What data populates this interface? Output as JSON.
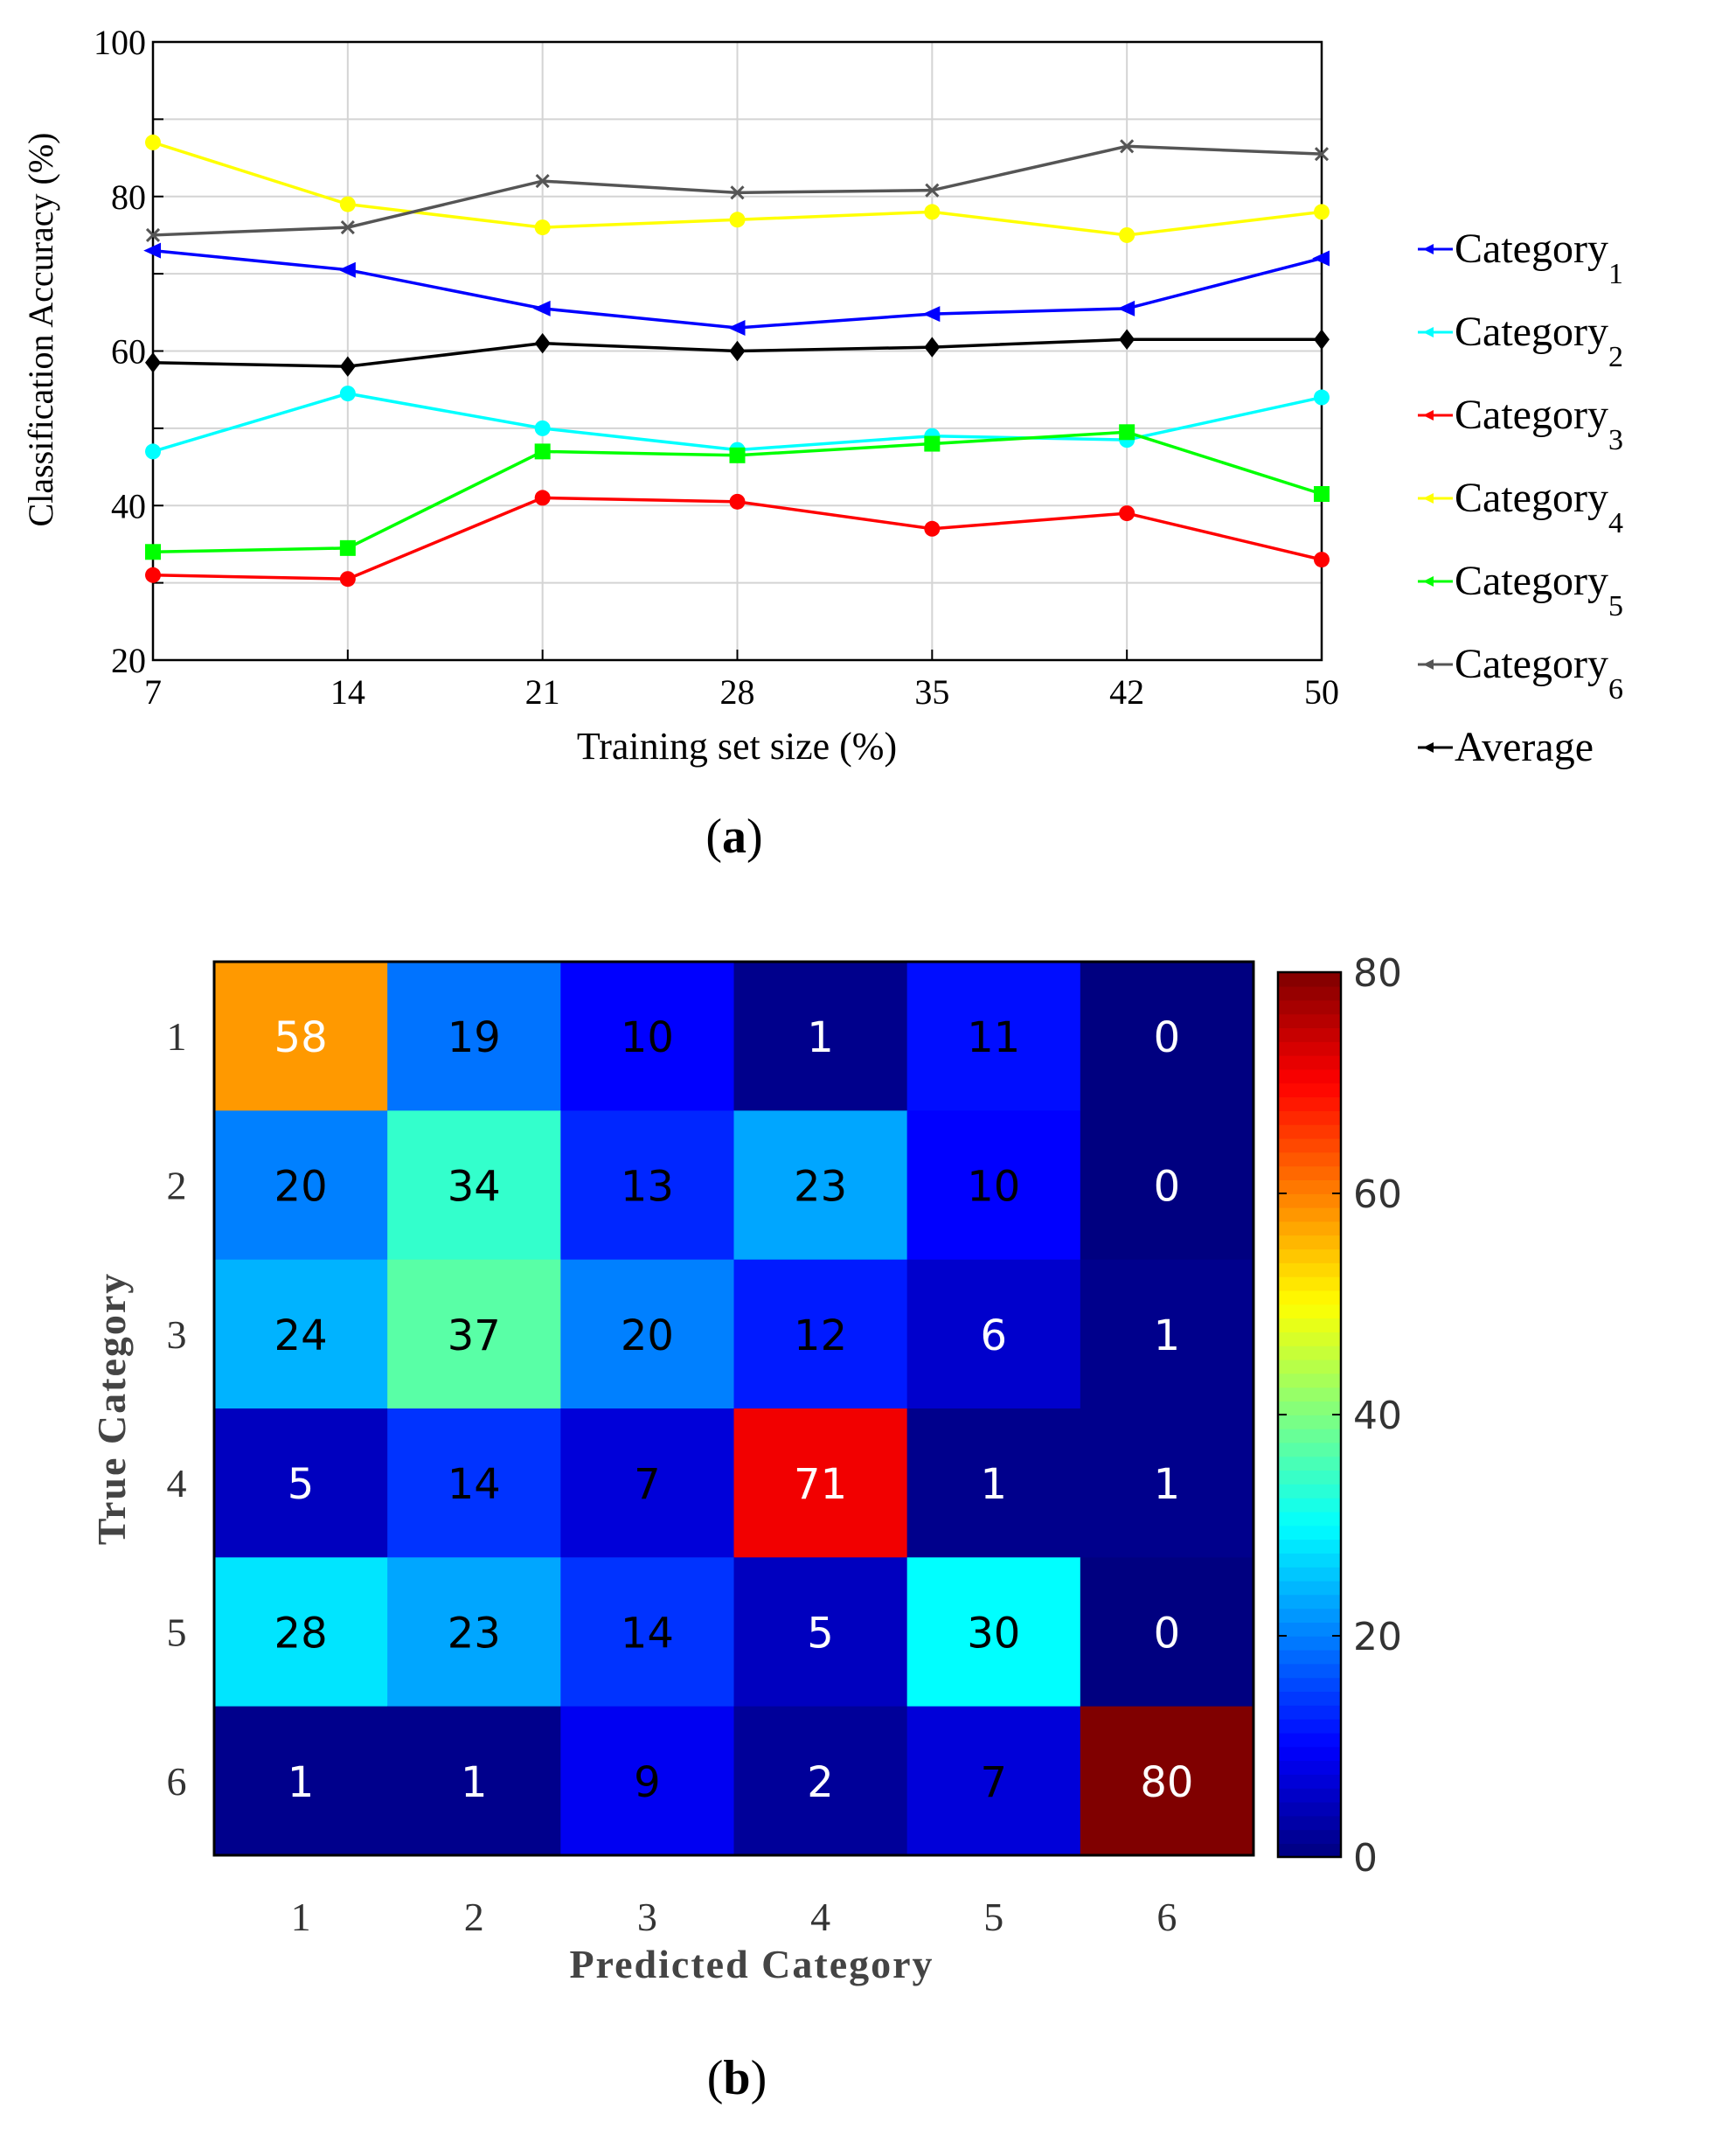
{
  "chart_data": [
    {
      "panel": "a",
      "type": "line",
      "caption": "(a)",
      "xlabel": "Training set size (%)",
      "ylabel": "Classification Accuracy (%)",
      "x": [
        7,
        14,
        21,
        28,
        35,
        42,
        50
      ],
      "x_tick_labels": [
        "7",
        "14",
        "21",
        "28",
        "35",
        "42",
        "50"
      ],
      "ylim": [
        20,
        100
      ],
      "y_ticks": [
        20,
        40,
        60,
        80,
        100
      ],
      "y_tick_labels": [
        "20",
        "40",
        "60",
        "80",
        "100"
      ],
      "grid": true,
      "legend_position": "right",
      "series": [
        {
          "name": "Category",
          "sub": "1",
          "color": "#0000ff",
          "marker": "triangle-left",
          "values": [
            73,
            70.5,
            65.5,
            63,
            64.8,
            65.5,
            72
          ]
        },
        {
          "name": "Category",
          "sub": "2",
          "color": "#00ffff",
          "marker": "circle",
          "values": [
            47,
            54.5,
            50,
            47.2,
            49,
            48.5,
            54
          ]
        },
        {
          "name": "Category",
          "sub": "3",
          "color": "#ff0000",
          "marker": "circle",
          "values": [
            31,
            30.5,
            41,
            40.5,
            37,
            39,
            33
          ]
        },
        {
          "name": "Category",
          "sub": "4",
          "color": "#ffff00",
          "marker": "circle",
          "values": [
            87,
            79,
            76,
            77,
            78,
            75,
            78
          ]
        },
        {
          "name": "Category",
          "sub": "5",
          "color": "#00ff00",
          "marker": "square",
          "values": [
            34,
            34.5,
            47,
            46.5,
            48,
            49.5,
            41.5
          ]
        },
        {
          "name": "Category",
          "sub": "6",
          "color": "#555555",
          "marker": "x",
          "values": [
            75,
            76,
            82,
            80.5,
            80.8,
            86.5,
            85.5
          ]
        },
        {
          "name": "Average",
          "sub": "",
          "color": "#000000",
          "marker": "diamond",
          "values": [
            58.5,
            58,
            61,
            60,
            60.5,
            61.5,
            61.5
          ]
        }
      ]
    },
    {
      "panel": "b",
      "type": "heatmap",
      "caption": "(b)",
      "xlabel": "Predicted Category",
      "ylabel": "True Category",
      "x_tick_labels": [
        "1",
        "2",
        "3",
        "4",
        "5",
        "6"
      ],
      "y_tick_labels": [
        "1",
        "2",
        "3",
        "4",
        "5",
        "6"
      ],
      "colorbar_range": [
        0,
        80
      ],
      "colorbar_ticks": [
        0,
        20,
        40,
        60,
        80
      ],
      "colorbar_tick_labels": [
        "0",
        "20",
        "40",
        "60",
        "80"
      ],
      "matrix": [
        [
          58,
          19,
          10,
          1,
          11,
          0
        ],
        [
          20,
          34,
          13,
          23,
          10,
          0
        ],
        [
          24,
          37,
          20,
          12,
          6,
          1
        ],
        [
          5,
          14,
          7,
          71,
          1,
          1
        ],
        [
          28,
          23,
          14,
          5,
          30,
          0
        ],
        [
          1,
          1,
          9,
          2,
          7,
          80
        ]
      ]
    }
  ]
}
